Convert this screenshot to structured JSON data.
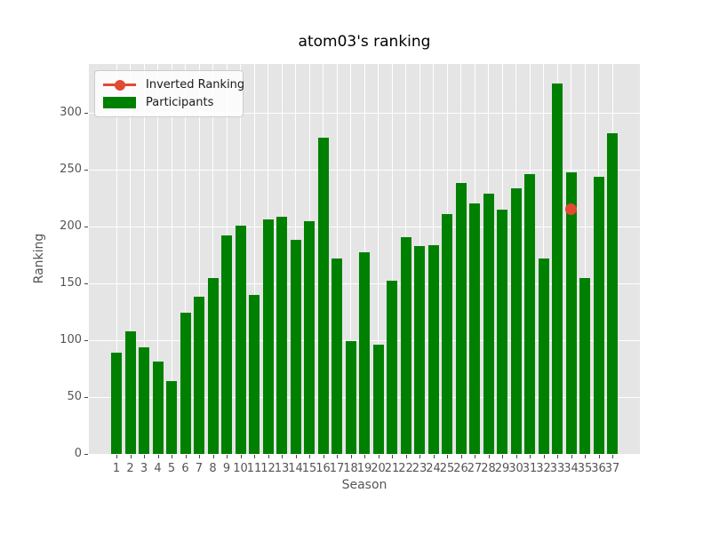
{
  "title": "atom03's ranking",
  "chart_data": {
    "type": "bar",
    "title": "atom03's ranking",
    "xlabel": "Season",
    "ylabel": "Ranking",
    "categories": [
      "1",
      "2",
      "3",
      "4",
      "5",
      "6",
      "7",
      "8",
      "9",
      "10",
      "11",
      "12",
      "13",
      "14",
      "15",
      "16",
      "17",
      "18",
      "19",
      "20",
      "21",
      "22",
      "23",
      "24",
      "25",
      "26",
      "27",
      "28",
      "29",
      "30",
      "31",
      "32",
      "33",
      "34",
      "35",
      "36",
      "37"
    ],
    "series": [
      {
        "name": "Inverted Ranking",
        "type": "line",
        "color": "#E24A33",
        "points": [
          {
            "x": 34,
            "y": 215
          }
        ]
      },
      {
        "name": "Participants",
        "type": "bar",
        "color": "#008000",
        "values": [
          89,
          108,
          94,
          81,
          64,
          124,
          138,
          155,
          192,
          201,
          140,
          206,
          209,
          188,
          205,
          278,
          172,
          99,
          177,
          96,
          152,
          191,
          183,
          184,
          211,
          238,
          220,
          229,
          215,
          234,
          246,
          172,
          326,
          248,
          155,
          244,
          282
        ]
      }
    ],
    "yticks": [
      0,
      50,
      100,
      150,
      200,
      250,
      300
    ],
    "ylim": [
      0,
      343
    ],
    "xlim": [
      -1,
      39
    ],
    "grid": true,
    "legend_position": "upper left",
    "plot_bg_color": "#E5E5E5",
    "grid_color": "#FFFFFF"
  }
}
